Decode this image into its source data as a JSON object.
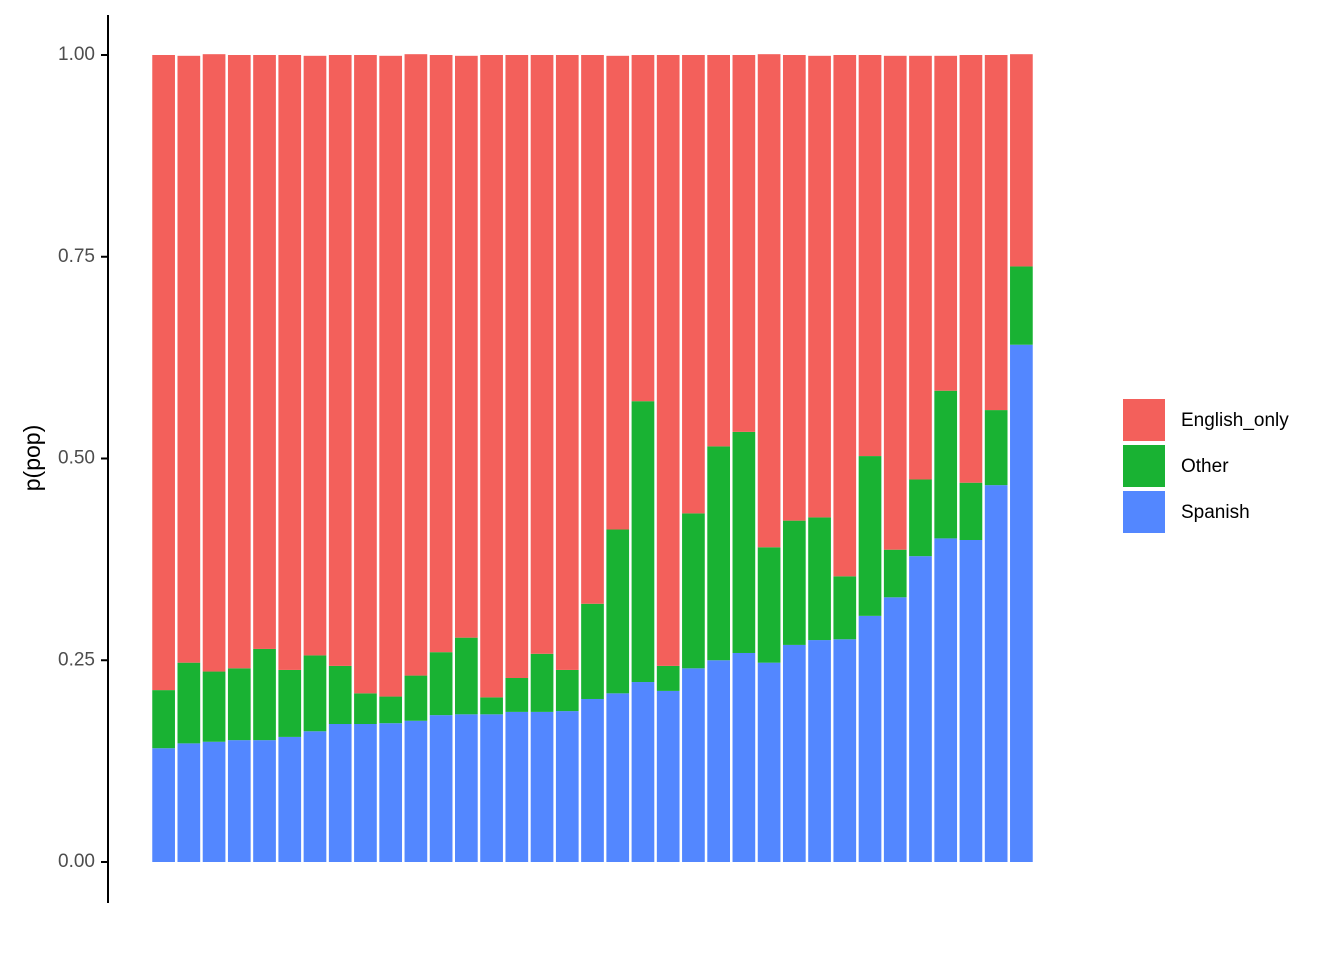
{
  "chart_data": {
    "type": "bar",
    "stacked": true,
    "y_label": "p(pop)",
    "categories": [
      null,
      null,
      null,
      null,
      null,
      null,
      null,
      null,
      null,
      null,
      null,
      null,
      null,
      null,
      null,
      null,
      null,
      null,
      null,
      null,
      null,
      null,
      null,
      null,
      null,
      null,
      null,
      null,
      null,
      null,
      null,
      null,
      null,
      null,
      null
    ],
    "series": [
      {
        "name": "English_only",
        "color": "#f3605b",
        "values": [
          0.787,
          0.752,
          0.765,
          0.76,
          0.736,
          0.762,
          0.743,
          0.757,
          0.791,
          0.794,
          0.77,
          0.74,
          0.721,
          0.796,
          0.772,
          0.742,
          0.762,
          0.68,
          0.587,
          0.429,
          0.757,
          0.568,
          0.485,
          0.467,
          0.611,
          0.577,
          0.572,
          0.646,
          0.497,
          0.612,
          0.525,
          0.415,
          0.53,
          0.44,
          0.263
        ]
      },
      {
        "name": "Other",
        "color": "#19b233",
        "values": [
          0.072,
          0.1,
          0.087,
          0.089,
          0.113,
          0.083,
          0.094,
          0.072,
          0.038,
          0.033,
          0.056,
          0.078,
          0.095,
          0.021,
          0.042,
          0.072,
          0.051,
          0.118,
          0.203,
          0.348,
          0.031,
          0.192,
          0.265,
          0.274,
          0.143,
          0.154,
          0.152,
          0.078,
          0.198,
          0.059,
          0.095,
          0.183,
          0.071,
          0.093,
          0.097
        ]
      },
      {
        "name": "Spanish",
        "color": "#5387ff",
        "values": [
          0.141,
          0.147,
          0.149,
          0.151,
          0.151,
          0.155,
          0.162,
          0.171,
          0.171,
          0.172,
          0.175,
          0.182,
          0.183,
          0.183,
          0.186,
          0.186,
          0.187,
          0.202,
          0.209,
          0.223,
          0.212,
          0.24,
          0.25,
          0.259,
          0.247,
          0.269,
          0.275,
          0.276,
          0.305,
          0.328,
          0.379,
          0.401,
          0.399,
          0.467,
          0.641
        ]
      }
    ],
    "ylim": [
      0,
      1
    ],
    "yticks": [
      {
        "value": 0,
        "label": "0.00"
      },
      {
        "value": 0.25,
        "label": "0.25"
      },
      {
        "value": 0.5,
        "label": "0.50"
      },
      {
        "value": 0.75,
        "label": "0.75"
      },
      {
        "value": 1,
        "label": "1.00"
      }
    ]
  }
}
